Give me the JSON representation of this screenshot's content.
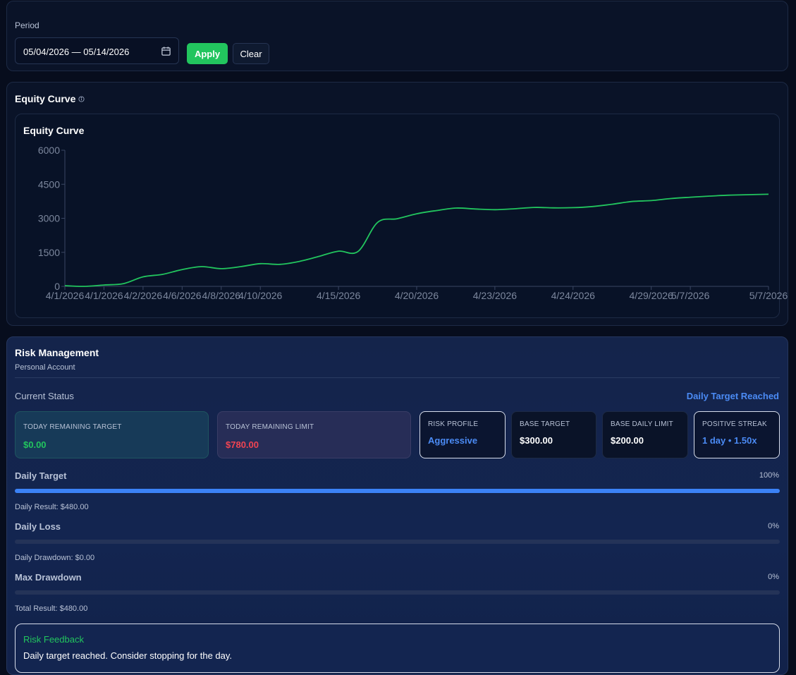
{
  "period": {
    "label": "Period",
    "date_range_value": "05/04/2026 — 05/14/2026",
    "apply_label": "Apply",
    "clear_label": "Clear"
  },
  "equity": {
    "heading": "Equity Curve",
    "chart_title": "Equity Curve"
  },
  "chart_data": {
    "type": "line",
    "title": "Equity Curve",
    "xlabel": "",
    "ylabel": "",
    "ylim": [
      0,
      6000
    ],
    "yticks": [
      0,
      1500,
      3000,
      4500,
      6000
    ],
    "x_tick_labels": [
      "4/1/2026",
      "4/1/2026",
      "4/2/2026",
      "4/6/2026",
      "4/8/2026",
      "4/10/2026",
      "4/15/2026",
      "4/20/2026",
      "4/23/2026",
      "4/24/2026",
      "4/29/2026",
      "5/7/2026",
      "5/7/2026"
    ],
    "x_tick_positions": [
      0,
      1,
      2,
      3,
      4,
      5,
      7,
      9,
      11,
      13,
      15,
      16,
      18
    ],
    "x_max": 18,
    "grid": false,
    "line_color": "#22c55e",
    "series": [
      {
        "x": [
          0,
          0.5,
          1,
          1.5,
          2,
          2.5,
          3,
          3.5,
          4,
          4.5,
          5,
          5.5,
          6,
          6.5,
          7,
          7.5,
          8,
          8.5,
          9,
          9.5,
          10,
          10.5,
          11,
          11.5,
          12,
          12.5,
          13,
          13.5,
          14,
          14.5,
          15,
          15.5,
          16,
          16.5,
          17,
          17.5,
          18
        ],
        "values": [
          30,
          0,
          60,
          120,
          420,
          530,
          740,
          870,
          780,
          870,
          1000,
          970,
          1100,
          1320,
          1550,
          1540,
          2820,
          2980,
          3200,
          3340,
          3450,
          3410,
          3380,
          3420,
          3480,
          3460,
          3470,
          3520,
          3620,
          3740,
          3780,
          3870,
          3930,
          3980,
          4020,
          4040,
          4060
        ]
      }
    ]
  },
  "risk": {
    "title": "Risk Management",
    "subtitle": "Personal Account",
    "current_status_label": "Current Status",
    "status_text": "Daily Target Reached",
    "boxes": {
      "today_target": {
        "label": "TODAY REMAINING TARGET",
        "value": "$0.00",
        "color": "#22c55e"
      },
      "today_limit": {
        "label": "TODAY REMAINING LIMIT",
        "value": "$780.00",
        "color": "#f04452"
      },
      "risk_profile": {
        "label": "RISK PROFILE",
        "value": "Aggressive",
        "color": "#4b8bf5"
      },
      "base_target": {
        "label": "BASE TARGET",
        "value": "$300.00",
        "color": "#ffffff"
      },
      "base_limit": {
        "label": "BASE DAILY LIMIT",
        "value": "$200.00",
        "color": "#ffffff"
      },
      "streak": {
        "label": "POSITIVE STREAK",
        "value": "1 day • 1.50x",
        "color": "#4b8bf5"
      }
    },
    "bars": [
      {
        "label": "Daily Target",
        "percent_text": "100%",
        "fraction": 1.0,
        "note": "Daily Result: $480.00"
      },
      {
        "label": "Daily Loss",
        "percent_text": "0%",
        "fraction": 0,
        "note": "Daily Drawdown: $0.00"
      },
      {
        "label": "Max Drawdown",
        "percent_text": "0%",
        "fraction": 0,
        "note": "Total Result: $480.00"
      }
    ],
    "feedback": {
      "title": "Risk Feedback",
      "text": "Daily target reached. Consider stopping for the day."
    }
  }
}
